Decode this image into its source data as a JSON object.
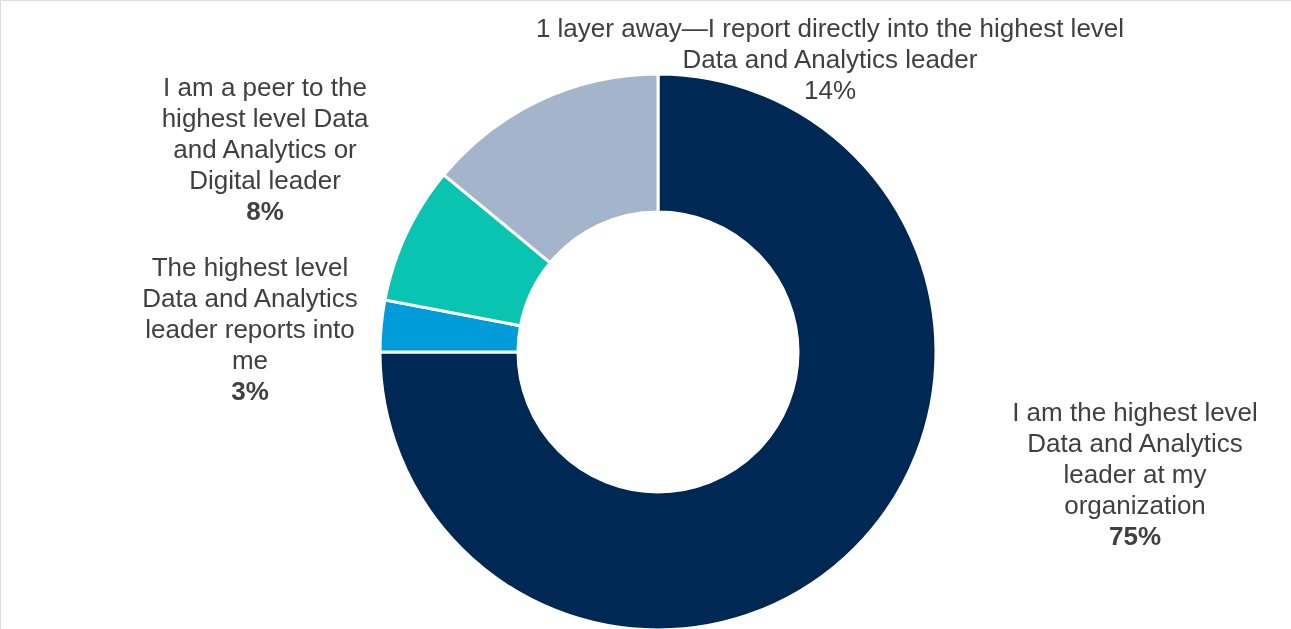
{
  "chart_data": {
    "type": "donut",
    "categories": [
      "I am the highest level Data and Analytics leader at my organization",
      "The highest level Data and Analytics leader reports into me",
      "I am a peer to the highest level Data and Analytics or Digital leader",
      "1 layer away—I report directly into the highest level Data and Analytics leader"
    ],
    "values": [
      75,
      3,
      8,
      14
    ],
    "colors": [
      "#002855",
      "#009bd9",
      "#08c4b0",
      "#a3b4cb"
    ],
    "value_labels": [
      "75%",
      "3%",
      "8%",
      "14%"
    ]
  }
}
